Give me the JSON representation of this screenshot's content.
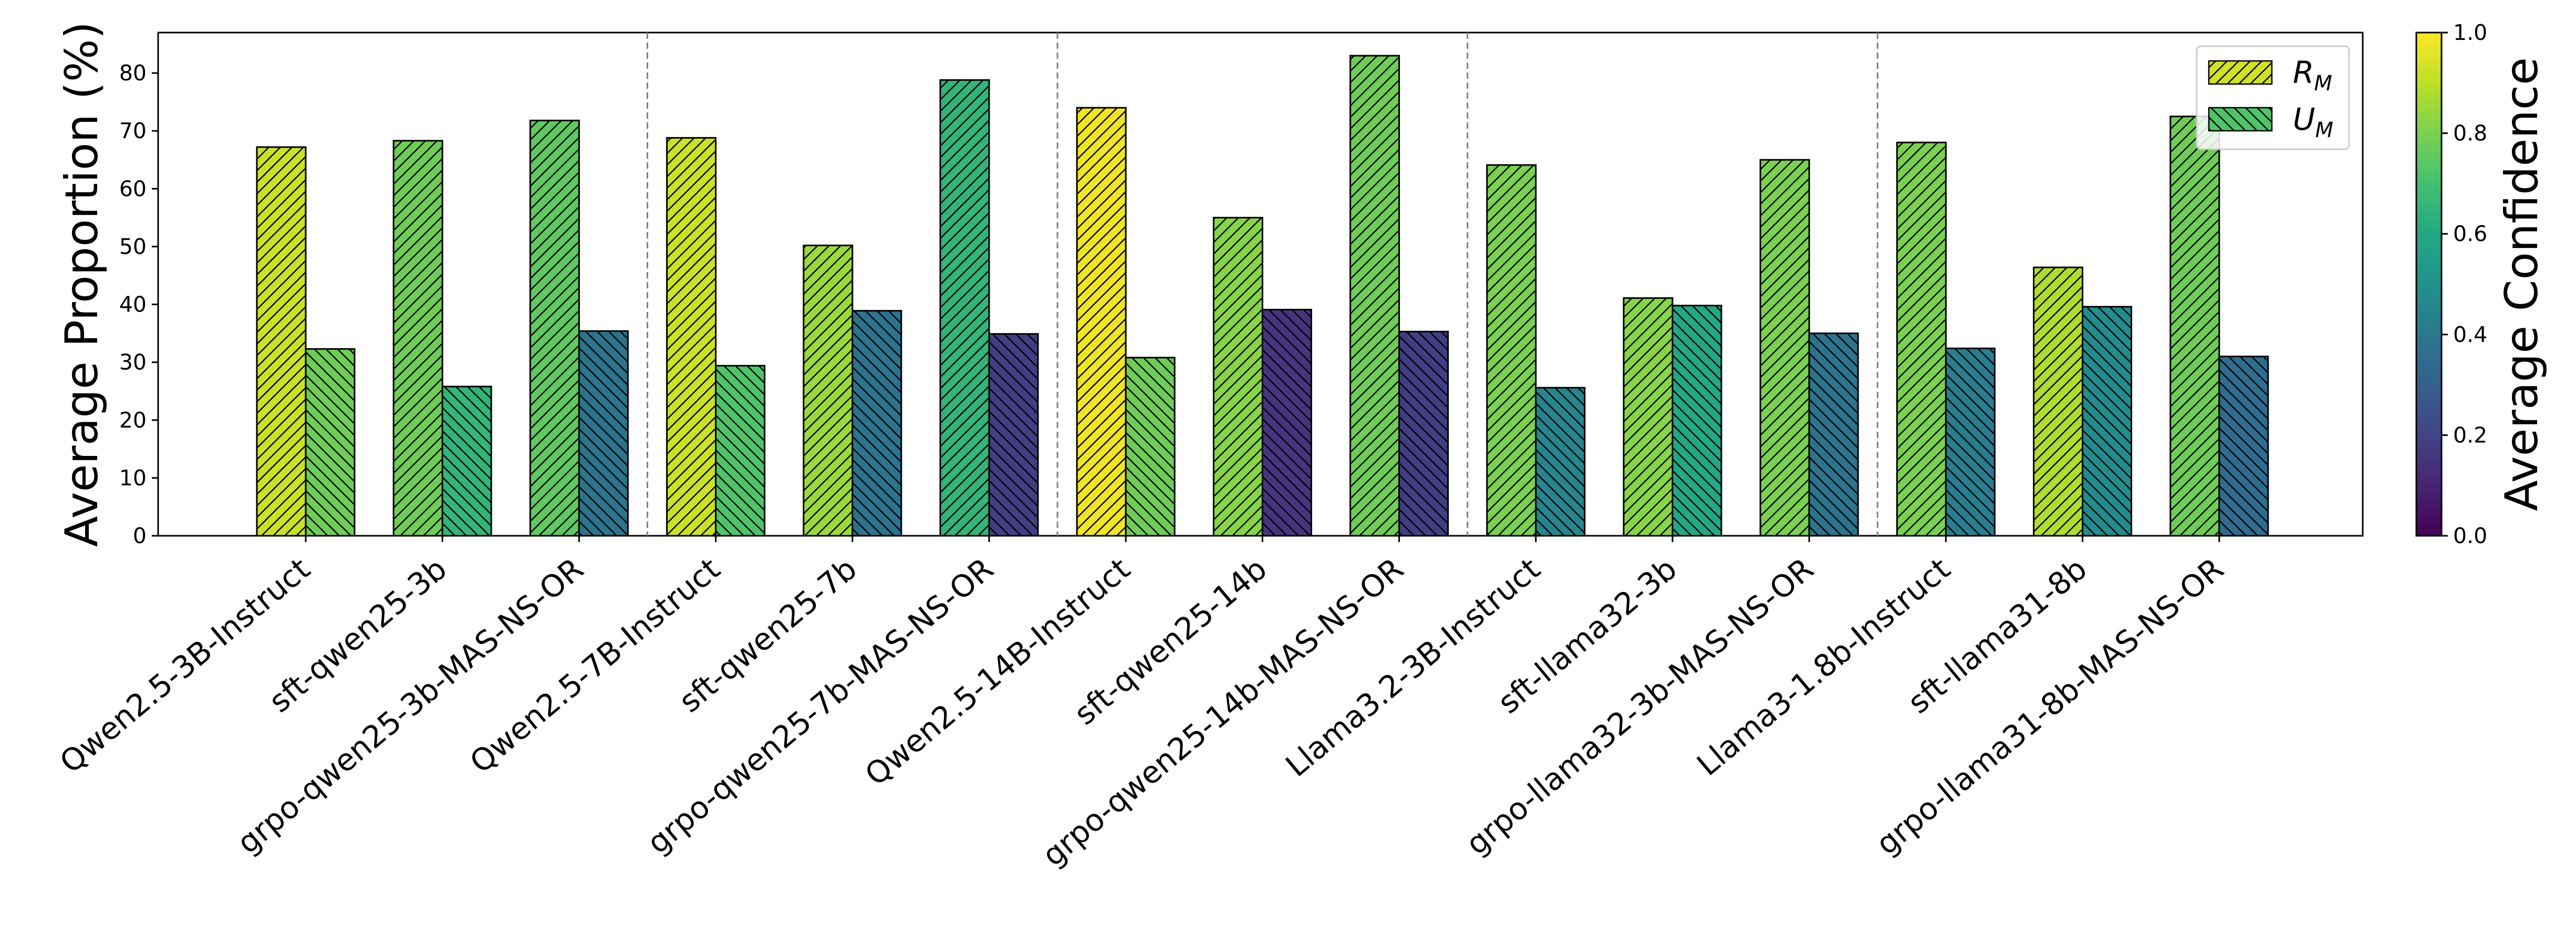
{
  "chart_data": {
    "type": "bar",
    "ylabel": "Average Proportion (%)",
    "ylim": [
      0,
      87
    ],
    "yticks": [
      0,
      10,
      20,
      30,
      40,
      50,
      60,
      70,
      80
    ],
    "categories": [
      "Qwen2.5-3B-Instruct",
      "sft-qwen25-3b",
      "grpo-qwen25-3b-MAS-NS-OR",
      "Qwen2.5-7B-Instruct",
      "sft-qwen25-7b",
      "grpo-qwen25-7b-MAS-NS-OR",
      "Qwen2.5-14B-Instruct",
      "sft-qwen25-14b",
      "grpo-qwen25-14b-MAS-NS-OR",
      "Llama3.2-3B-Instruct",
      "sft-llama32-3b",
      "grpo-llama32-3b-MAS-NS-OR",
      "Llama3-1.8b-Instruct",
      "sft-llama31-8b",
      "grpo-llama31-8b-MAS-NS-OR"
    ],
    "group_separators_after": [
      2,
      5,
      8,
      11
    ],
    "series": [
      {
        "name": "R",
        "name_sub": "M",
        "hatch": "forward",
        "values": [
          67.2,
          68.3,
          71.8,
          68.8,
          50.2,
          78.8,
          74.0,
          55.0,
          83.0,
          64.1,
          41.1,
          65.0,
          68.0,
          46.4,
          72.5
        ],
        "confidence": [
          0.92,
          0.78,
          0.75,
          0.92,
          0.85,
          0.65,
          0.98,
          0.82,
          0.78,
          0.8,
          0.82,
          0.8,
          0.8,
          0.88,
          0.78
        ]
      },
      {
        "name": "U",
        "name_sub": "M",
        "hatch": "back",
        "values": [
          32.3,
          25.8,
          35.4,
          29.4,
          38.9,
          34.9,
          30.8,
          39.1,
          35.3,
          25.6,
          39.8,
          35.0,
          32.4,
          39.6,
          31.0
        ],
        "confidence": [
          0.78,
          0.65,
          0.38,
          0.72,
          0.38,
          0.18,
          0.78,
          0.15,
          0.18,
          0.45,
          0.6,
          0.38,
          0.42,
          0.48,
          0.35
        ]
      }
    ],
    "colorbar": {
      "label": "Average Confidence",
      "range": [
        0.0,
        1.0
      ],
      "ticks": [
        "0.0",
        "0.2",
        "0.4",
        "0.6",
        "0.8",
        "1.0"
      ],
      "colormap": "viridis"
    },
    "legend_placement": "top-right",
    "grid": false
  }
}
